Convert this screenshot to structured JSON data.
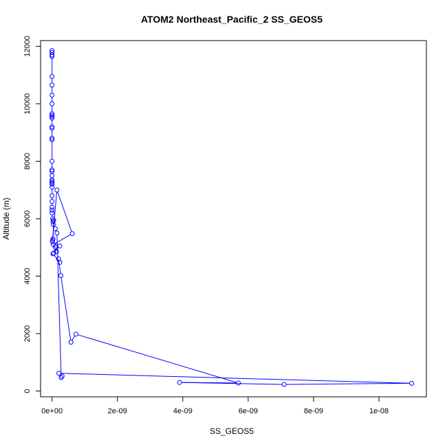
{
  "chart_data": {
    "type": "scatter",
    "title": "ATOM2 Northeast_Pacific_2 SS_GEOS5",
    "xlabel": "SS_GEOS5",
    "ylabel": "Altitude (m)",
    "xlim": [
      -3.5e-10,
      1.145e-08
    ],
    "ylim": [
      -200,
      12200
    ],
    "x_ticks": [
      0,
      2e-09,
      4e-09,
      6e-09,
      8e-09,
      1e-08
    ],
    "x_tick_labels": [
      "0e+00",
      "2e-09",
      "4e-09",
      "6e-09",
      "8e-09",
      "1e-08"
    ],
    "y_ticks": [
      0,
      2000,
      4000,
      6000,
      8000,
      10000,
      12000
    ],
    "y_tick_labels": [
      "0",
      "2000",
      "4000",
      "6000",
      "8000",
      "10000",
      "12000"
    ],
    "grid": false,
    "legend": "none",
    "series_color": "#0000ff",
    "marker": "open-circle",
    "connected": true,
    "x": [
      0.0,
      0.0,
      0.0,
      0.0,
      0.0,
      0.0,
      0.0,
      0.0,
      0.0,
      0.0,
      0.0,
      0.0,
      0.0,
      0.0,
      0.0,
      0.0,
      0.0,
      0.0,
      0.0,
      0.0,
      0.0,
      0.0,
      0.0,
      0.0,
      0.0,
      0.0,
      0.0,
      0.0,
      0.0,
      0.0,
      2e-11,
      3e-11,
      4e-11,
      5e-11,
      3e-11,
      2e-11,
      1e-11,
      1.5e-10,
      6.2e-10,
      4e-11,
      1.1e-10,
      1.4e-10,
      5e-11,
      1.1e-10,
      2.4e-10,
      3e-11,
      2.4e-10,
      2e-10,
      2.7e-10,
      5.8e-10,
      7.3e-10,
      5.7e-09,
      3.9e-09,
      7.1e-09,
      1.1e-08,
      2.1e-10,
      3.1e-10,
      2.8e-10,
      1.5e-10,
      1e-10
    ],
    "y": [
      11850,
      11780,
      11700,
      11650,
      10950,
      10650,
      10300,
      10000,
      9650,
      9600,
      9550,
      9500,
      9200,
      9150,
      8800,
      8750,
      8000,
      7700,
      7650,
      7500,
      7350,
      7300,
      7250,
      7200,
      7100,
      6800,
      6600,
      6400,
      6300,
      6200,
      6000,
      5900,
      5800,
      5950,
      5300,
      5250,
      5200,
      7000,
      5480,
      5100,
      5050,
      4850,
      4800,
      5000,
      5050,
      4780,
      4480,
      4600,
      4020,
      1700,
      1980,
      280,
      300,
      230,
      270,
      620,
      520,
      470,
      5500,
      5650
    ]
  }
}
